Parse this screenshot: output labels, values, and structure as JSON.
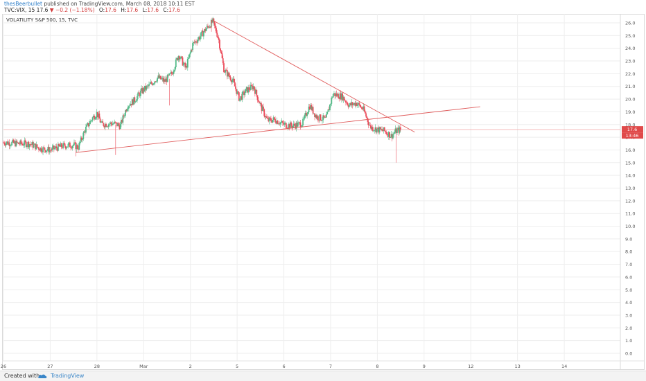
{
  "header": {
    "author": "thesBeerbullet",
    "published": "published on TradingView.com, March 08, 2018 10:11 EST",
    "symbol": "TVC:VIX, 15",
    "last": "17.6",
    "change": "−0.2 (−1.18%)",
    "o_label": "O:",
    "o_value": "17.6",
    "h_label": "H:",
    "h_value": "17.6",
    "l_label": "L:",
    "l_value": "17.6",
    "c_label": "C:",
    "c_value": "17.6"
  },
  "legend": {
    "title": "VOLATILITY S&P 500, 15, TVC"
  },
  "price_badges": {
    "last_price": "17.6",
    "countdown": "13:46"
  },
  "footer": {
    "created_with": "Created with",
    "brand": "TradingView"
  },
  "colors": {
    "up": "#53b987",
    "down": "#eb4d5c",
    "trendline": "#e05c5c",
    "price_line": "#f2a0a0",
    "grid": "#eeeeee",
    "badge": "#e04a4a"
  },
  "chart_data": {
    "type": "candlestick",
    "symbol": "TVC:VIX",
    "interval": "15",
    "ylim": [
      -0.6,
      26.6
    ],
    "y_ticks": [
      "0.0",
      "1.0",
      "2.0",
      "3.0",
      "4.0",
      "5.0",
      "6.0",
      "7.0",
      "8.0",
      "9.0",
      "10.0",
      "11.0",
      "12.0",
      "13.0",
      "14.0",
      "15.0",
      "16.0",
      "17.0",
      "18.0",
      "19.0",
      "20.0",
      "21.0",
      "22.0",
      "23.0",
      "24.0",
      "25.0",
      "26.0"
    ],
    "x_labels": [
      "26",
      "27",
      "28",
      "Mar",
      "2",
      "5",
      "6",
      "7",
      "8",
      "9",
      "12",
      "13",
      "14"
    ],
    "x_positions": [
      0,
      1,
      2,
      3,
      4,
      5,
      6,
      7,
      8,
      9,
      10,
      11,
      12
    ],
    "xlim": [
      0,
      13.2
    ],
    "last_price": 17.6,
    "price_path": [
      [
        0.0,
        16.6
      ],
      [
        0.3,
        16.5
      ],
      [
        0.55,
        16.5
      ],
      [
        0.8,
        16.1
      ],
      [
        1.0,
        16.0
      ],
      [
        1.25,
        16.3
      ],
      [
        1.5,
        16.4
      ],
      [
        1.6,
        16.2
      ],
      [
        1.75,
        17.6
      ],
      [
        1.9,
        18.5
      ],
      [
        2.0,
        18.9
      ],
      [
        2.1,
        18.0
      ],
      [
        2.35,
        18.1
      ],
      [
        2.5,
        17.9
      ],
      [
        2.65,
        19.5
      ],
      [
        2.8,
        19.9
      ],
      [
        2.95,
        20.6
      ],
      [
        3.1,
        21.0
      ],
      [
        3.3,
        21.7
      ],
      [
        3.45,
        21.4
      ],
      [
        3.6,
        22.0
      ],
      [
        3.75,
        23.5
      ],
      [
        3.9,
        22.4
      ],
      [
        4.05,
        24.3
      ],
      [
        4.2,
        24.9
      ],
      [
        4.35,
        25.6
      ],
      [
        4.48,
        26.1
      ],
      [
        4.6,
        24.8
      ],
      [
        4.72,
        22.3
      ],
      [
        4.9,
        21.5
      ],
      [
        5.05,
        20.0
      ],
      [
        5.2,
        20.7
      ],
      [
        5.35,
        21.0
      ],
      [
        5.5,
        19.5
      ],
      [
        5.65,
        18.3
      ],
      [
        5.8,
        18.4
      ],
      [
        6.0,
        18.0
      ],
      [
        6.2,
        17.9
      ],
      [
        6.4,
        18.1
      ],
      [
        6.55,
        19.5
      ],
      [
        6.7,
        18.6
      ],
      [
        6.9,
        18.4
      ],
      [
        7.05,
        20.4
      ],
      [
        7.25,
        20.2
      ],
      [
        7.4,
        19.5
      ],
      [
        7.55,
        19.7
      ],
      [
        7.7,
        19.2
      ],
      [
        7.85,
        17.8
      ],
      [
        8.0,
        17.6
      ],
      [
        8.15,
        17.5
      ],
      [
        8.3,
        17.1
      ],
      [
        8.4,
        17.5
      ],
      [
        8.5,
        17.6
      ]
    ],
    "wicks": [
      {
        "x": 1.55,
        "low": 15.5,
        "high": 16.4
      },
      {
        "x": 2.4,
        "low": 15.6,
        "high": 18.0
      },
      {
        "x": 3.55,
        "low": 19.5,
        "high": 21.6
      },
      {
        "x": 4.45,
        "low": 25.3,
        "high": 26.2
      },
      {
        "x": 8.4,
        "low": 15.0,
        "high": 17.5
      }
    ],
    "trendlines": [
      {
        "name": "resistance",
        "x1": 4.48,
        "y1": 26.2,
        "x2": 8.8,
        "y2": 17.4
      },
      {
        "name": "support",
        "x1": 1.55,
        "y1": 15.8,
        "x2": 10.2,
        "y2": 19.4
      }
    ]
  }
}
